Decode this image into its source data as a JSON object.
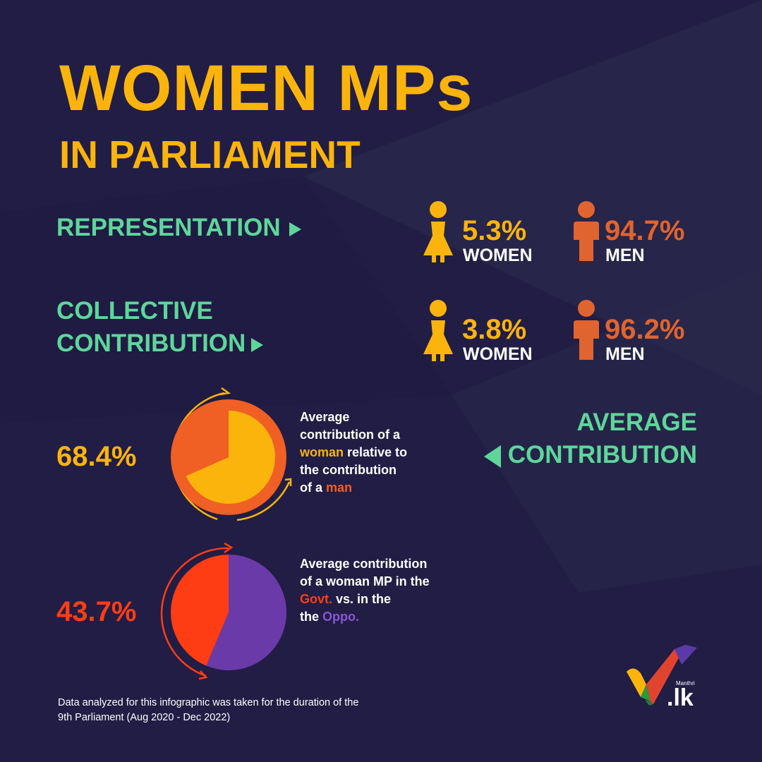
{
  "title": "WOMEN MPs",
  "subtitle": "IN PARLIAMENT",
  "colors": {
    "yellow": "#fbb40c",
    "orange_men": "#e0642f",
    "green": "#5ed69a",
    "background": "#211d45",
    "red": "#ff3d14",
    "purple": "#6a3aa8",
    "orange_ring": "#f05f24"
  },
  "representation": {
    "label": "REPRESENTATION",
    "women_value": "5.3%",
    "women_label": "WOMEN",
    "men_value": "94.7%",
    "men_label": "MEN"
  },
  "collective": {
    "label_line1": "COLLECTIVE",
    "label_line2": "CONTRIBUTION",
    "women_value": "3.8%",
    "women_label": "WOMEN",
    "men_value": "96.2%",
    "men_label": "MEN"
  },
  "average": {
    "label_line1": "AVERAGE",
    "label_line2": "CONTRIBUTION"
  },
  "pie1": {
    "value_text": "68.4%",
    "desc_line1": "Average",
    "desc_line2": "contribution of a",
    "desc_word_highlight": "woman",
    "desc_line3_rest": " relative to",
    "desc_line4": "the contribution",
    "desc_line5_pre": "of a ",
    "desc_word_highlight2": "man"
  },
  "pie2": {
    "value_text": "43.7%",
    "desc_line1": "Average contribution",
    "desc_line2": "of a woman MP in the",
    "desc_word_govt": "Govt.",
    "desc_line3_rest": " vs. in the",
    "desc_line4_pre": "the ",
    "desc_word_oppo": "Oppo."
  },
  "footnote_line1": "Data analyzed for this infographic  was taken for the duration of the",
  "footnote_line2": "9th Parliament (Aug 2020 - Dec 2022)",
  "logo": {
    "small": "Manthri",
    "big": ".lk"
  },
  "chart_data": [
    {
      "type": "table",
      "rows": [
        {
          "metric": "REPRESENTATION",
          "women": 5.3,
          "men": 94.7
        },
        {
          "metric": "COLLECTIVE CONTRIBUTION",
          "women": 3.8,
          "men": 96.2
        }
      ]
    },
    {
      "type": "pie",
      "categories": [
        "woman",
        "man"
      ],
      "values": [
        68.4,
        31.6
      ]
    },
    {
      "type": "pie",
      "categories": [
        "Govt.",
        "Oppo."
      ],
      "values": [
        43.7,
        56.3
      ]
    }
  ]
}
